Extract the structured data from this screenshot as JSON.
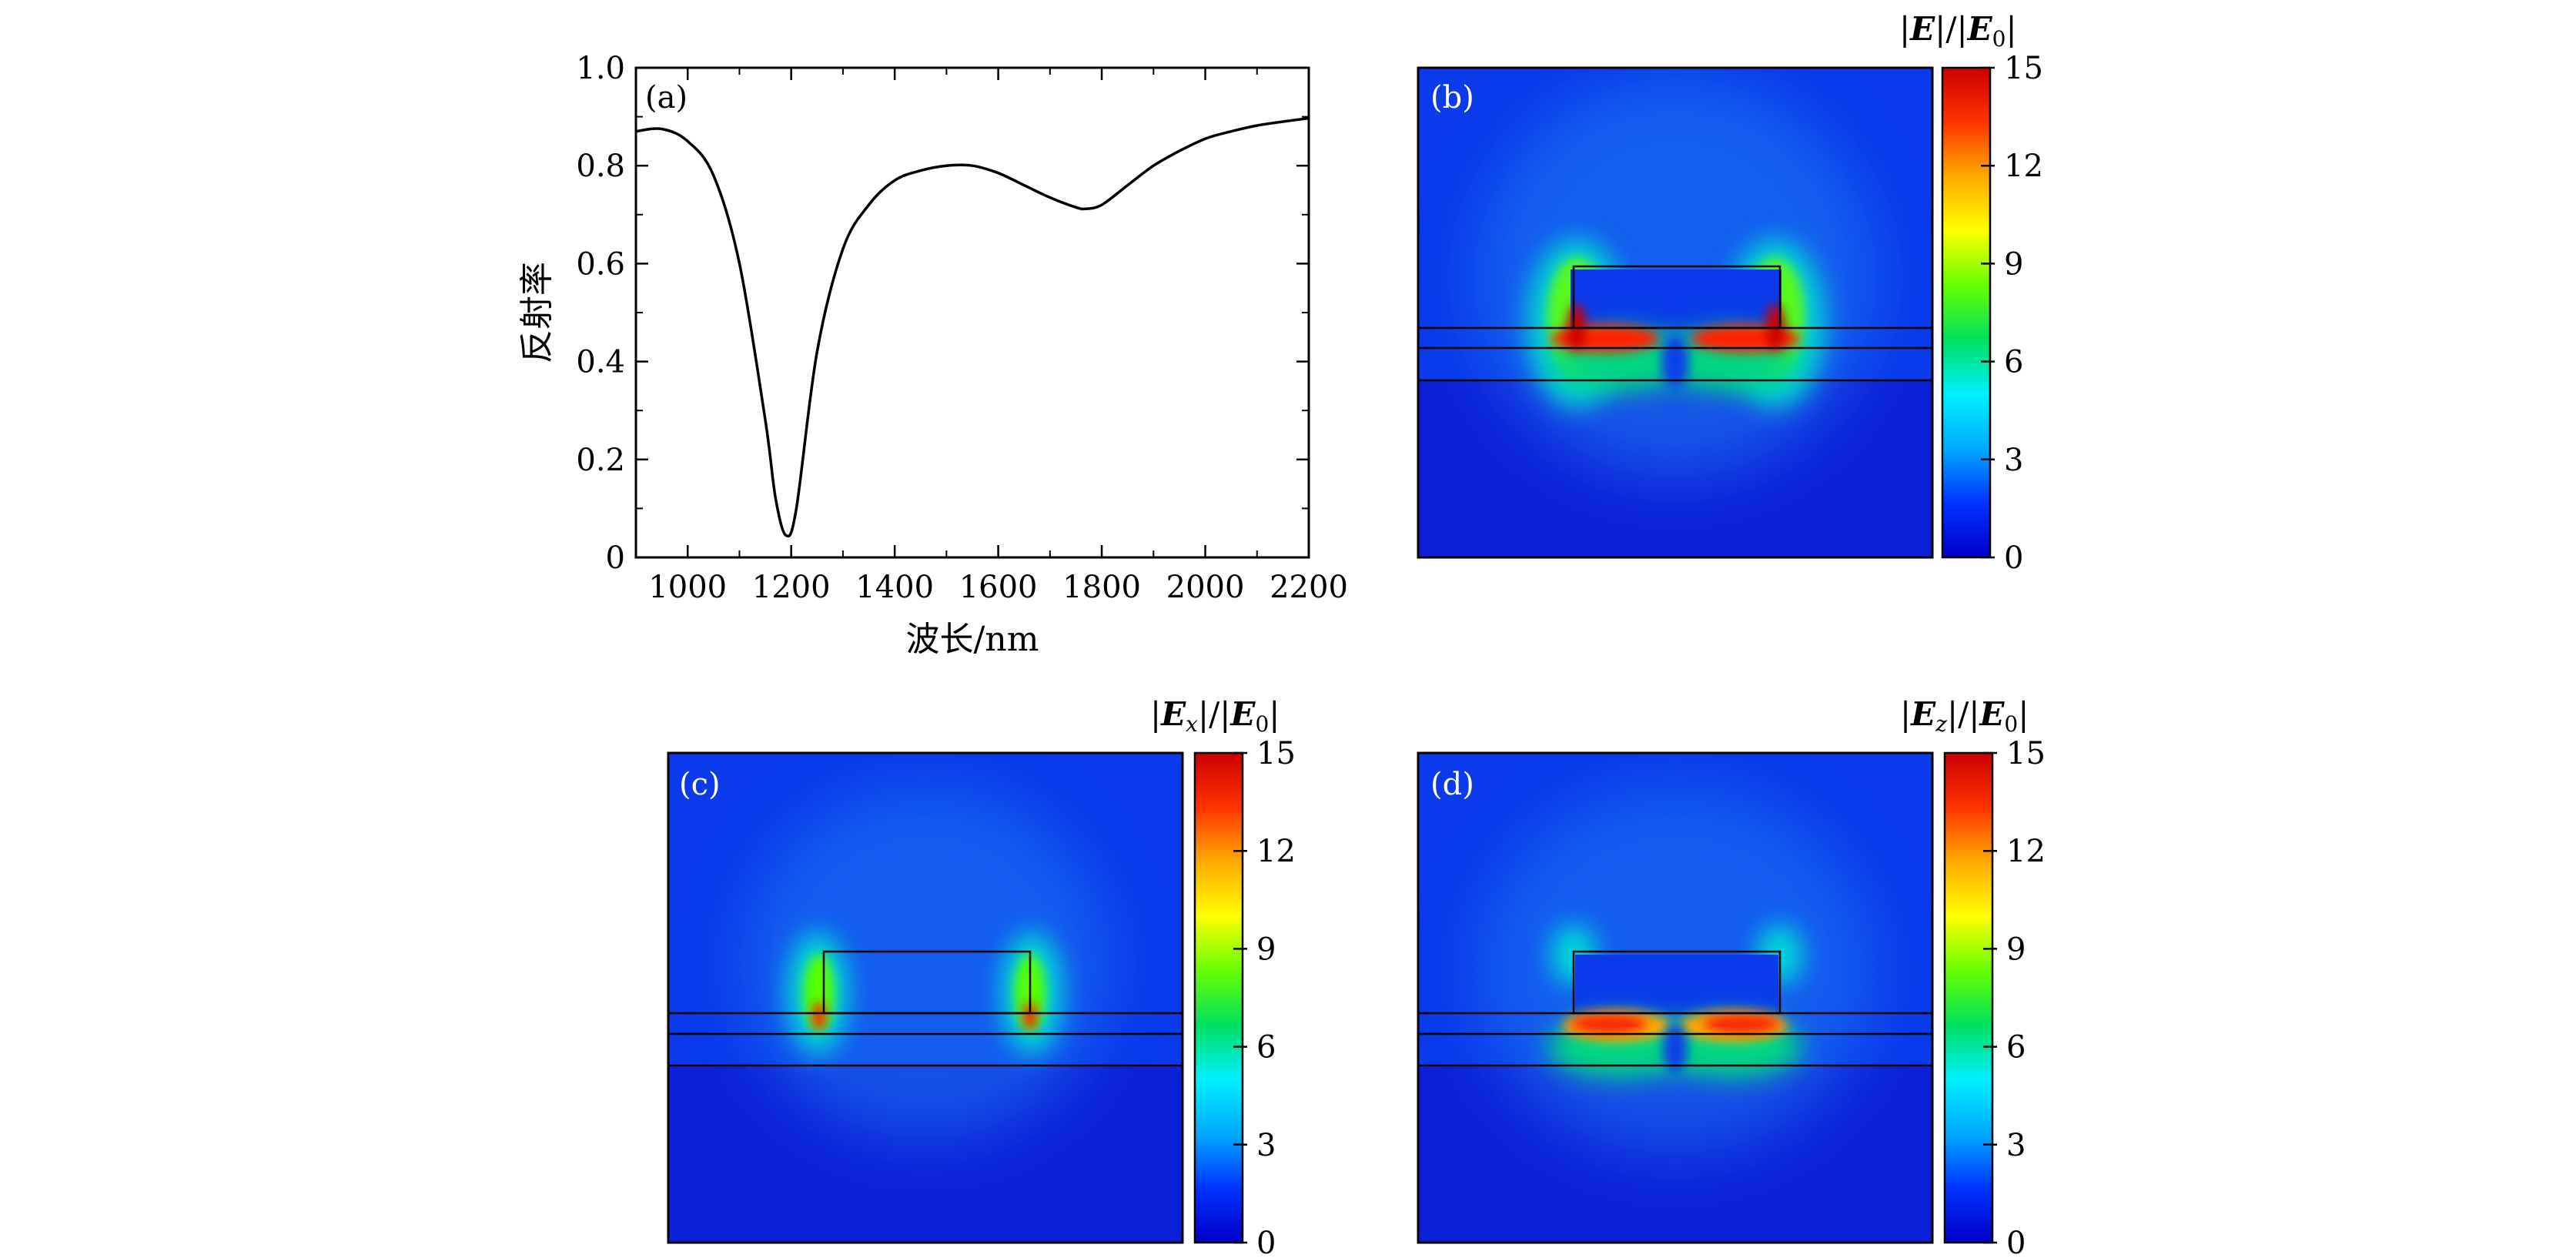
{
  "figure": {
    "colormap_stops": [
      "#0000c8",
      "#0033ff",
      "#00aaff",
      "#00f0ff",
      "#00e060",
      "#66ff00",
      "#ffff00",
      "#ffaa00",
      "#ff3300",
      "#cc0000"
    ],
    "structure_line_color": "#000000"
  },
  "chart_data": [
    {
      "id": "a",
      "type": "line",
      "panel_label": "(a)",
      "xlabel": "波长/nm",
      "ylabel": "反射率",
      "xlim": [
        900,
        2200
      ],
      "ylim": [
        0,
        1.0
      ],
      "xticks": [
        1000,
        1200,
        1400,
        1600,
        1800,
        2000,
        2200
      ],
      "yticks": [
        0,
        0.2,
        0.4,
        0.6,
        0.8,
        1.0
      ],
      "ytick_labels": [
        "0",
        "0.2",
        "0.4",
        "0.6",
        "0.8",
        "1.0"
      ],
      "series": [
        {
          "name": "reflectance",
          "x": [
            900,
            950,
            1000,
            1050,
            1100,
            1150,
            1170,
            1190,
            1210,
            1250,
            1300,
            1350,
            1400,
            1450,
            1500,
            1550,
            1600,
            1650,
            1700,
            1750,
            1770,
            1800,
            1850,
            1900,
            1950,
            2000,
            2050,
            2100,
            2150,
            2200
          ],
          "y": [
            0.87,
            0.875,
            0.85,
            0.78,
            0.6,
            0.28,
            0.12,
            0.045,
            0.1,
            0.42,
            0.63,
            0.72,
            0.77,
            0.79,
            0.8,
            0.8,
            0.785,
            0.76,
            0.735,
            0.715,
            0.712,
            0.72,
            0.76,
            0.8,
            0.83,
            0.855,
            0.87,
            0.882,
            0.89,
            0.897
          ]
        }
      ]
    },
    {
      "id": "b",
      "type": "heatmap",
      "panel_label": "(b)",
      "colorbar_title": "|E|/|E0|",
      "colorbar_range": [
        0,
        15
      ],
      "colorbar_ticks": [
        0,
        3,
        6,
        9,
        12,
        15
      ],
      "field_component": "total"
    },
    {
      "id": "c",
      "type": "heatmap",
      "panel_label": "(c)",
      "colorbar_title": "|Ex|/|E0|",
      "colorbar_range": [
        0,
        15
      ],
      "colorbar_ticks": [
        0,
        3,
        6,
        9,
        12,
        15
      ],
      "field_component": "x"
    },
    {
      "id": "d",
      "type": "heatmap",
      "panel_label": "(d)",
      "colorbar_title": "|Ez|/|E0|",
      "colorbar_range": [
        0,
        15
      ],
      "colorbar_ticks": [
        0,
        3,
        6,
        9,
        12,
        15
      ],
      "field_component": "z"
    }
  ]
}
